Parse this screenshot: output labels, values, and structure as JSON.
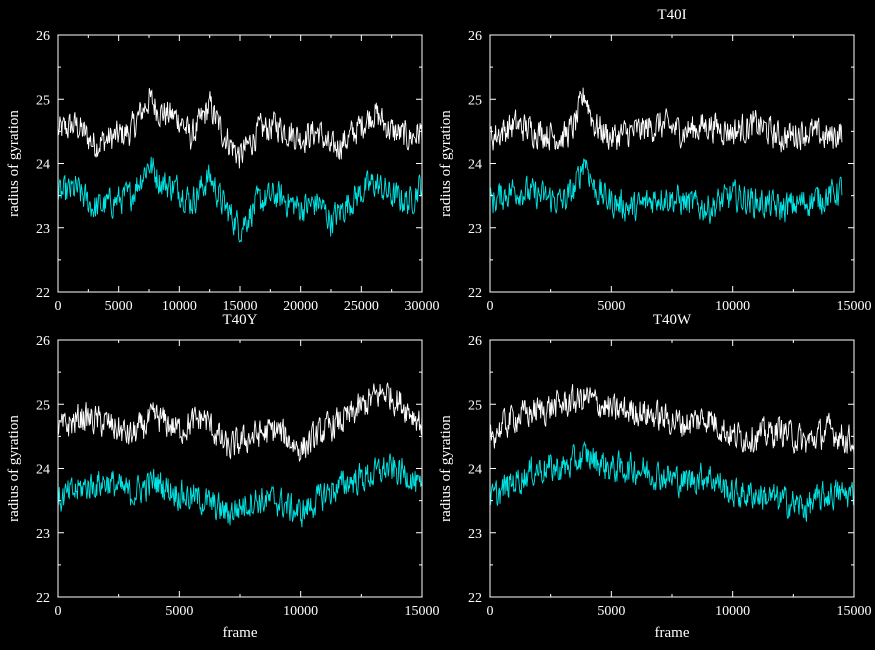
{
  "figure": {
    "background": "#000000",
    "axis_color": "#ffffff"
  },
  "chart_data": [
    {
      "type": "line",
      "title": "",
      "xlabel": "",
      "ylabel": "radius of gyration",
      "xlim": [
        0,
        30000
      ],
      "ylim": [
        22,
        26
      ],
      "xticks": [
        0,
        5000,
        10000,
        15000,
        20000,
        25000,
        30000
      ],
      "xtick_labels": [
        "0",
        "5000",
        "10000",
        "15000",
        "20000",
        "25000",
        "30000"
      ],
      "yticks": [
        22,
        23,
        24,
        25,
        26
      ],
      "ytick_labels": [
        "22",
        "23",
        "24",
        "25",
        "26"
      ],
      "grid": false,
      "series": [
        {
          "color": "#ffffff",
          "x": [
            0,
            1500,
            3000,
            4500,
            6000,
            7500,
            8500,
            10000,
            11000,
            12500,
            13500,
            15000,
            16500,
            18000,
            20000,
            21500,
            22500,
            24000,
            26000,
            27500,
            29000,
            30000
          ],
          "values": [
            24.5,
            24.6,
            24.3,
            24.4,
            24.5,
            25.0,
            24.8,
            24.7,
            24.4,
            24.9,
            24.5,
            24.1,
            24.5,
            24.6,
            24.4,
            24.5,
            24.2,
            24.4,
            24.8,
            24.5,
            24.4,
            24.5
          ]
        },
        {
          "color": "#00e5e5",
          "x": [
            0,
            1500,
            3000,
            4500,
            6000,
            7500,
            8500,
            10000,
            11000,
            12500,
            13500,
            15000,
            16500,
            18000,
            20000,
            21500,
            22500,
            24000,
            26000,
            27500,
            29000,
            30000
          ],
          "values": [
            23.5,
            23.6,
            23.3,
            23.4,
            23.5,
            24.0,
            23.7,
            23.6,
            23.4,
            23.8,
            23.4,
            23.0,
            23.4,
            23.5,
            23.3,
            23.4,
            23.1,
            23.4,
            23.7,
            23.5,
            23.4,
            23.7
          ]
        }
      ]
    },
    {
      "type": "line",
      "title": "T40I",
      "xlabel": "",
      "ylabel": "radius of gyration",
      "xlim": [
        0,
        15000
      ],
      "ylim": [
        22,
        26
      ],
      "xticks": [
        0,
        5000,
        10000,
        15000
      ],
      "xtick_labels": [
        "0",
        "5000",
        "10000",
        "15000"
      ],
      "yticks": [
        22,
        23,
        24,
        25,
        26
      ],
      "ytick_labels": [
        "22",
        "23",
        "24",
        "25",
        "26"
      ],
      "grid": false,
      "series": [
        {
          "color": "#ffffff",
          "x": [
            0,
            1000,
            2000,
            3000,
            3500,
            3900,
            4300,
            5000,
            6000,
            7000,
            8000,
            9000,
            10000,
            11000,
            12000,
            13000,
            14000,
            14500
          ],
          "values": [
            24.4,
            24.6,
            24.5,
            24.4,
            24.6,
            25.1,
            24.6,
            24.4,
            24.5,
            24.6,
            24.5,
            24.6,
            24.5,
            24.6,
            24.4,
            24.5,
            24.4,
            24.5
          ]
        },
        {
          "color": "#00e5e5",
          "x": [
            0,
            1000,
            2000,
            3000,
            3500,
            3900,
            4300,
            5000,
            6000,
            7000,
            8000,
            9000,
            10000,
            11000,
            12000,
            13000,
            14000,
            14500
          ],
          "values": [
            23.4,
            23.6,
            23.5,
            23.4,
            23.6,
            24.1,
            23.6,
            23.4,
            23.3,
            23.5,
            23.4,
            23.3,
            23.5,
            23.4,
            23.3,
            23.4,
            23.5,
            23.6
          ]
        }
      ]
    },
    {
      "type": "line",
      "title": "T40Y",
      "xlabel": "frame",
      "ylabel": "radius of gyration",
      "xlim": [
        0,
        15000
      ],
      "ylim": [
        22,
        26
      ],
      "xticks": [
        0,
        5000,
        10000,
        15000
      ],
      "xtick_labels": [
        "0",
        "5000",
        "10000",
        "15000"
      ],
      "yticks": [
        22,
        23,
        24,
        25,
        26
      ],
      "ytick_labels": [
        "22",
        "23",
        "24",
        "25",
        "26"
      ],
      "grid": false,
      "series": [
        {
          "color": "#ffffff",
          "x": [
            0,
            1000,
            2000,
            3000,
            4000,
            5000,
            6000,
            7000,
            8000,
            9000,
            10000,
            11000,
            12000,
            13000,
            13500,
            14500,
            15000
          ],
          "values": [
            24.6,
            24.8,
            24.7,
            24.5,
            24.8,
            24.6,
            24.8,
            24.3,
            24.5,
            24.6,
            24.3,
            24.6,
            24.8,
            25.1,
            25.2,
            24.9,
            24.7
          ]
        },
        {
          "color": "#00e5e5",
          "x": [
            0,
            1000,
            2000,
            3000,
            4000,
            5000,
            6000,
            7000,
            8000,
            9000,
            10000,
            11000,
            12000,
            13000,
            13500,
            14500,
            15000
          ],
          "values": [
            23.5,
            23.7,
            23.8,
            23.6,
            23.8,
            23.6,
            23.5,
            23.3,
            23.5,
            23.5,
            23.3,
            23.6,
            23.8,
            23.9,
            24.0,
            23.9,
            23.6
          ]
        }
      ]
    },
    {
      "type": "line",
      "title": "T40W",
      "xlabel": "frame",
      "ylabel": "radius of gyration",
      "xlim": [
        0,
        15000
      ],
      "ylim": [
        22,
        26
      ],
      "xticks": [
        0,
        5000,
        10000,
        15000
      ],
      "xtick_labels": [
        "0",
        "5000",
        "10000",
        "15000"
      ],
      "yticks": [
        22,
        23,
        24,
        25,
        26
      ],
      "ytick_labels": [
        "22",
        "23",
        "24",
        "25",
        "26"
      ],
      "grid": false,
      "series": [
        {
          "color": "#ffffff",
          "x": [
            0,
            1000,
            2000,
            3000,
            4000,
            5000,
            6000,
            7000,
            8000,
            9000,
            10000,
            11000,
            12000,
            13000,
            14000,
            15000
          ],
          "values": [
            24.5,
            24.8,
            24.9,
            25.0,
            25.1,
            24.9,
            24.9,
            24.8,
            24.7,
            24.8,
            24.5,
            24.5,
            24.6,
            24.4,
            24.6,
            24.4
          ]
        },
        {
          "color": "#00e5e5",
          "x": [
            0,
            1000,
            2000,
            3000,
            4000,
            5000,
            6000,
            7000,
            8000,
            9000,
            10000,
            11000,
            12000,
            13000,
            14000,
            15000
          ],
          "values": [
            23.5,
            23.8,
            24.0,
            24.0,
            24.2,
            24.0,
            24.0,
            23.9,
            23.8,
            23.9,
            23.6,
            23.6,
            23.5,
            23.4,
            23.6,
            23.6
          ]
        }
      ]
    }
  ]
}
